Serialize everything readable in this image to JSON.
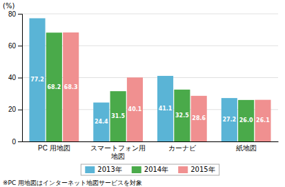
{
  "chart_data": {
    "type": "bar",
    "categories": [
      "PC 用地図",
      "スマートフォン用\n地図",
      "カーナビ",
      "紙地図"
    ],
    "series": [
      {
        "name": "2013年",
        "color": "#5ab4d6",
        "values": [
          77.2,
          24.4,
          41.1,
          27.2
        ],
        "value_labels": [
          "77.2",
          "24.4",
          "41.1",
          "27.2"
        ]
      },
      {
        "name": "2014年",
        "color": "#4aaa4a",
        "values": [
          68.2,
          31.5,
          32.5,
          26.0
        ],
        "value_labels": [
          "68.2",
          "31.5",
          "32.5",
          "26.0"
        ]
      },
      {
        "name": "2015年",
        "color": "#f09090",
        "values": [
          68.3,
          40.1,
          28.6,
          26.1
        ],
        "value_labels": [
          "68.3",
          "40.1",
          "28.6",
          "26.1"
        ]
      }
    ],
    "y_label": "(%)",
    "annotations": [
      "※PC 用地図はインターネット地図サービスを対象"
    ],
    "ylim": [
      0,
      80
    ],
    "yticks": [
      0,
      20,
      40,
      60,
      80
    ],
    "grid": true,
    "legend": "bottom",
    "data_labels": true
  }
}
